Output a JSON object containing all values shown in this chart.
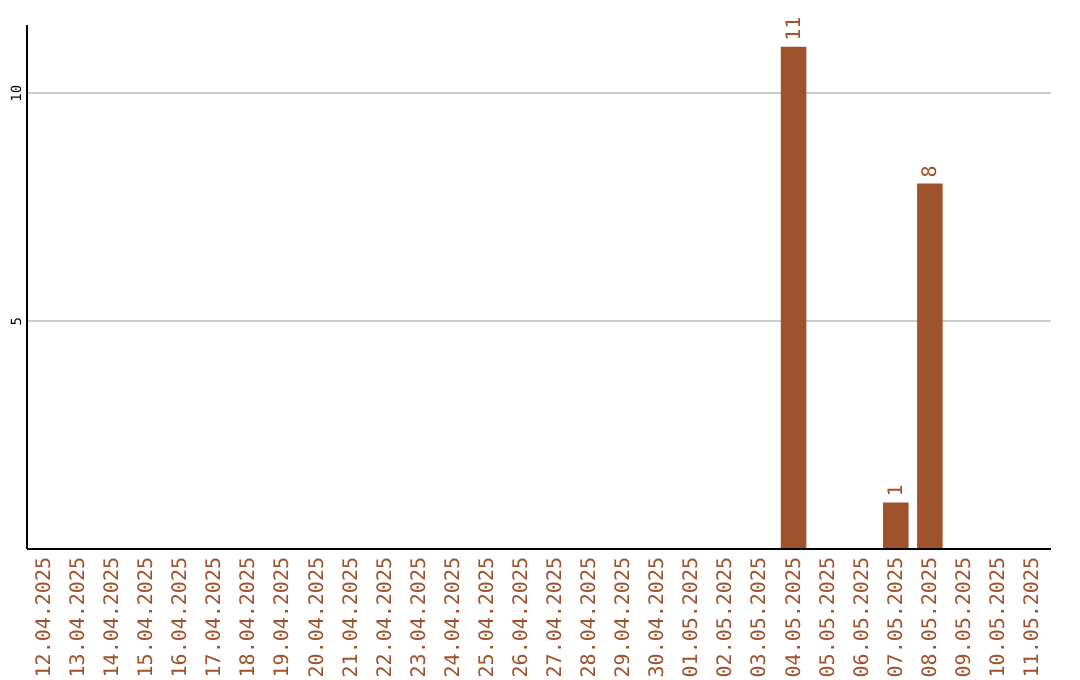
{
  "chart_data": {
    "type": "bar",
    "categories": [
      "12.04.2025",
      "13.04.2025",
      "14.04.2025",
      "15.04.2025",
      "16.04.2025",
      "17.04.2025",
      "18.04.2025",
      "19.04.2025",
      "20.04.2025",
      "21.04.2025",
      "22.04.2025",
      "23.04.2025",
      "24.04.2025",
      "25.04.2025",
      "26.04.2025",
      "27.04.2025",
      "28.04.2025",
      "29.04.2025",
      "30.04.2025",
      "01.05.2025",
      "02.05.2025",
      "03.05.2025",
      "04.05.2025",
      "05.05.2025",
      "06.05.2025",
      "07.05.2025",
      "08.05.2025",
      "09.05.2025",
      "10.05.2025",
      "11.05.2025"
    ],
    "values": [
      0,
      0,
      0,
      0,
      0,
      0,
      0,
      0,
      0,
      0,
      0,
      0,
      0,
      0,
      0,
      0,
      0,
      0,
      0,
      0,
      0,
      0,
      11,
      0,
      0,
      1,
      8,
      0,
      0,
      0
    ],
    "value_labels": [
      null,
      null,
      null,
      null,
      null,
      null,
      null,
      null,
      null,
      null,
      null,
      null,
      null,
      null,
      null,
      null,
      null,
      null,
      null,
      null,
      null,
      null,
      "11",
      null,
      null,
      "1",
      "8",
      null,
      null,
      null
    ],
    "color": "#a0522d",
    "ylim": [
      0,
      11.5
    ],
    "yticks": [
      5,
      10
    ],
    "grid": "y"
  }
}
